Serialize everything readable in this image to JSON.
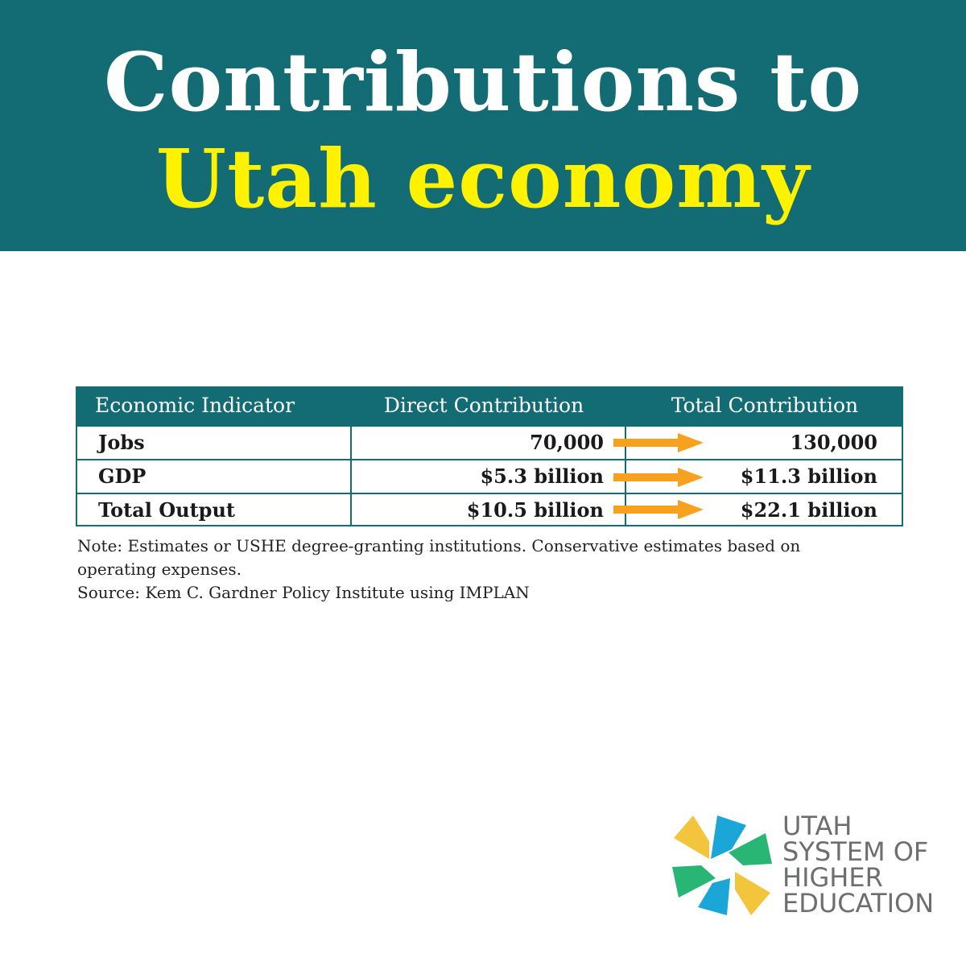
{
  "title": {
    "line1": "Contributions to",
    "line2": "Utah economy"
  },
  "colors": {
    "banner": "#136b73",
    "title_line1": "#ffffff",
    "title_line2": "#fff200",
    "arrow": "#f7a11e",
    "text": "#1a1a1a"
  },
  "chart_data": {
    "type": "table",
    "columns": [
      "Economic Indicator",
      "Direct Contribution",
      "Total Contribution"
    ],
    "rows": [
      {
        "indicator": "Jobs",
        "direct": "70,000",
        "total": "130,000",
        "direct_value": 70000,
        "total_value": 130000
      },
      {
        "indicator": "GDP",
        "direct": "$5.3 billion",
        "total": "$11.3 billion",
        "direct_value": 5.3,
        "total_value": 11.3
      },
      {
        "indicator": "Total Output",
        "direct": "$10.5 billion",
        "total": "$22.1 billion",
        "direct_value": 10.5,
        "total_value": 22.1
      }
    ]
  },
  "notes": {
    "note": "Note: Estimates or USHE degree-granting institutions. Conservative estimates based on operating expenses.",
    "source": "Source: Kem C. Gardner Policy Institute using IMPLAN"
  },
  "logo": {
    "lines": [
      "UTAH",
      "SYSTEM OF",
      "HIGHER",
      "EDUCATION"
    ],
    "icon": "pinwheel-logo-icon"
  }
}
